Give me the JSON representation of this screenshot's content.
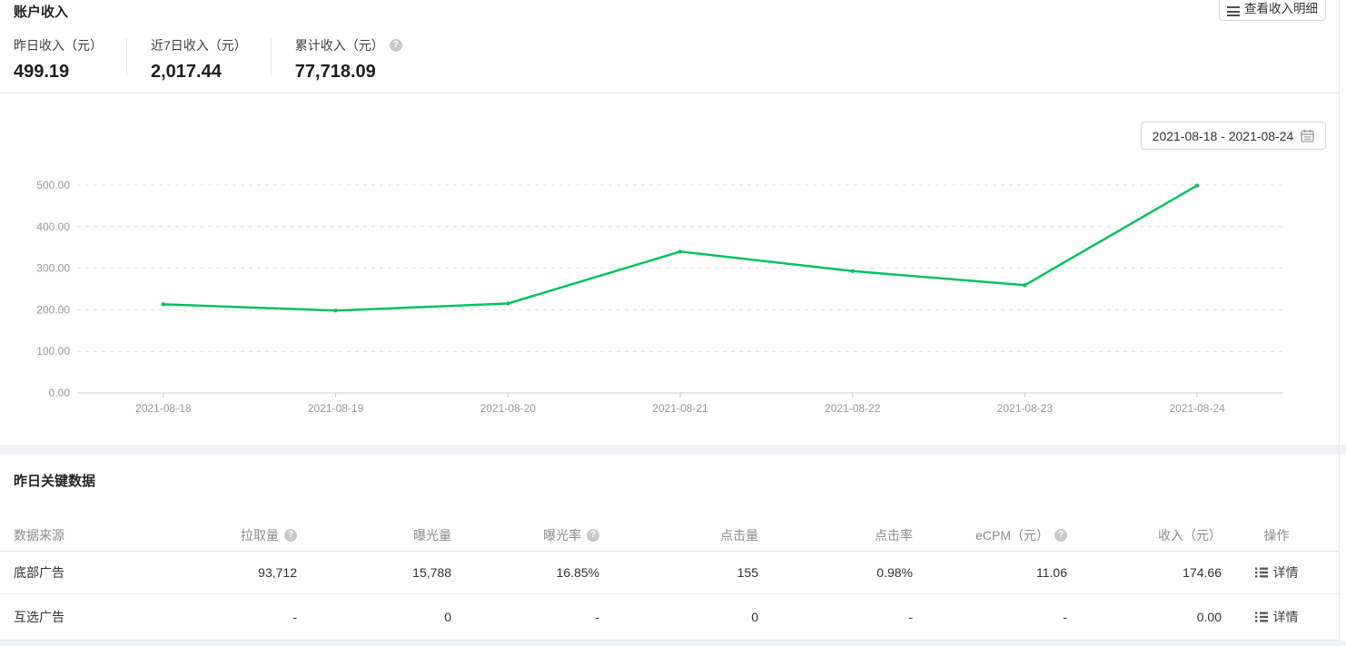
{
  "header": {
    "title": "账户收入",
    "view_details_button": "查看收入明细",
    "stats": [
      {
        "label": "昨日收入（元）",
        "value": "499.19"
      },
      {
        "label": "近7日收入（元）",
        "value": "2,017.44"
      },
      {
        "label": "累计收入（元）",
        "value": "77,718.09"
      }
    ],
    "help_glyph": "?"
  },
  "chart_panel": {
    "date_range": "2021-08-18 - 2021-08-24"
  },
  "chart_data": {
    "type": "line",
    "title": "",
    "x": [
      "2021-08-18",
      "2021-08-19",
      "2021-08-20",
      "2021-08-21",
      "2021-08-22",
      "2021-08-23",
      "2021-08-24"
    ],
    "series": [
      {
        "name": "收入（元）",
        "values": [
          213,
          198,
          215,
          340,
          293,
          259.25,
          499.19
        ]
      }
    ],
    "ylim": [
      0,
      500
    ],
    "ytick_labels": [
      "0.00",
      "100.00",
      "200.00",
      "300.00",
      "400.00",
      "500.00"
    ],
    "grid": "dashed-horizontal",
    "legend_position": "none",
    "line_color": "#07c160",
    "axis_color": "#cccccc",
    "grid_color": "#e0e0e0",
    "tick_label_color": "#999999"
  },
  "table_section": {
    "title": "昨日关键数据",
    "columns": [
      {
        "label": "数据来源",
        "has_help": false
      },
      {
        "label": "拉取量",
        "has_help": true
      },
      {
        "label": "曝光量",
        "has_help": false
      },
      {
        "label": "曝光率",
        "has_help": true
      },
      {
        "label": "点击量",
        "has_help": false
      },
      {
        "label": "点击率",
        "has_help": false
      },
      {
        "label": "eCPM（元）",
        "has_help": true
      },
      {
        "label": "收入（元）",
        "has_help": false
      },
      {
        "label": "操作",
        "has_help": false
      }
    ],
    "rows": [
      {
        "source": "底部广告",
        "cells": [
          "93,712",
          "15,788",
          "16.85%",
          "155",
          "0.98%",
          "11.06",
          "174.66"
        ],
        "action": "详情"
      },
      {
        "source": "互选广告",
        "cells": [
          "-",
          "0",
          "-",
          "0",
          "-",
          "-",
          "0.00"
        ],
        "action": "详情"
      }
    ]
  }
}
